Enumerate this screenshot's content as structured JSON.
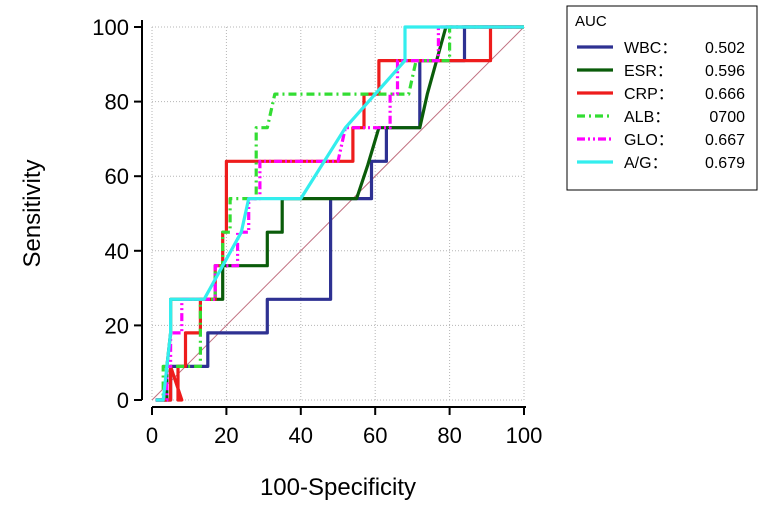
{
  "chart_data": {
    "type": "line",
    "title": "",
    "xlabel": "100-Specificity",
    "ylabel": "Sensitivity",
    "xlim": [
      0,
      100
    ],
    "ylim": [
      0,
      100
    ],
    "x_ticks": [
      "0",
      "20",
      "40",
      "60",
      "80",
      "100"
    ],
    "y_ticks": [
      "0",
      "20",
      "40",
      "60",
      "80",
      "100"
    ],
    "grid": true,
    "legend_placement": "top-right outside",
    "legend_title": "AUC",
    "reference_line": {
      "from": [
        0,
        0
      ],
      "to": [
        100,
        100
      ],
      "color": "#c07080"
    },
    "series": [
      {
        "name": "WBC",
        "auc_label": "0.502",
        "color": "#2e3192",
        "dash": "solid",
        "points": [
          [
            1,
            0
          ],
          [
            5,
            0
          ],
          [
            5,
            9
          ],
          [
            15,
            9
          ],
          [
            15,
            18
          ],
          [
            31,
            18
          ],
          [
            31,
            27
          ],
          [
            48,
            27
          ],
          [
            48,
            54
          ],
          [
            59,
            54
          ],
          [
            59,
            64
          ],
          [
            63,
            64
          ],
          [
            63,
            73
          ],
          [
            72,
            73
          ],
          [
            72,
            91
          ],
          [
            84,
            91
          ],
          [
            84,
            100
          ],
          [
            100,
            100
          ]
        ]
      },
      {
        "name": "ESR",
        "auc_label": "0.596",
        "color": "#0a5c0a",
        "dash": "solid",
        "points": [
          [
            1,
            0
          ],
          [
            4,
            0
          ],
          [
            4,
            9
          ],
          [
            5,
            18
          ],
          [
            5,
            27
          ],
          [
            13,
            27
          ],
          [
            13,
            27
          ],
          [
            19,
            27
          ],
          [
            19,
            36
          ],
          [
            25,
            36
          ],
          [
            25,
            36
          ],
          [
            31,
            36
          ],
          [
            31,
            45
          ],
          [
            35,
            45
          ],
          [
            35,
            54
          ],
          [
            55,
            54
          ],
          [
            58,
            63
          ],
          [
            61,
            73
          ],
          [
            72,
            73
          ],
          [
            74,
            82
          ],
          [
            79,
            100
          ],
          [
            100,
            100
          ]
        ]
      },
      {
        "name": "CRP",
        "auc_label": "0.666",
        "color": "#ee1c1c",
        "dash": "solid",
        "points": [
          [
            1,
            0
          ],
          [
            5,
            0
          ],
          [
            5,
            9
          ],
          [
            8,
            0
          ],
          [
            7,
            0
          ],
          [
            7,
            9
          ],
          [
            9,
            9
          ],
          [
            9,
            18
          ],
          [
            13,
            18
          ],
          [
            13,
            27
          ],
          [
            17,
            27
          ],
          [
            17,
            36
          ],
          [
            19,
            36
          ],
          [
            19,
            45
          ],
          [
            20,
            45
          ],
          [
            20,
            64
          ],
          [
            54,
            64
          ],
          [
            54,
            73
          ],
          [
            57,
            73
          ],
          [
            57,
            82
          ],
          [
            61,
            82
          ],
          [
            61,
            91
          ],
          [
            70,
            91
          ],
          [
            70,
            91
          ],
          [
            76,
            91
          ],
          [
            76,
            91
          ],
          [
            91,
            91
          ],
          [
            91,
            100
          ],
          [
            100,
            100
          ]
        ]
      },
      {
        "name": "ALB",
        "auc_label": "0700",
        "color": "#33dd33",
        "dash": "8,4,2,4",
        "points": [
          [
            1,
            0
          ],
          [
            3,
            0
          ],
          [
            3,
            9
          ],
          [
            13,
            9
          ],
          [
            13,
            27
          ],
          [
            17,
            27
          ],
          [
            17,
            36
          ],
          [
            19,
            36
          ],
          [
            19,
            45
          ],
          [
            21,
            45
          ],
          [
            21,
            54
          ],
          [
            28,
            54
          ],
          [
            28,
            73
          ],
          [
            31,
            73
          ],
          [
            33,
            82
          ],
          [
            69,
            82
          ],
          [
            71,
            91
          ],
          [
            80,
            91
          ],
          [
            80,
            100
          ],
          [
            100,
            100
          ]
        ]
      },
      {
        "name": "GLO",
        "auc_label": "0.667",
        "color": "#ff00ff",
        "dash": "8,3,2,3,2,3",
        "points": [
          [
            1,
            0
          ],
          [
            4,
            0
          ],
          [
            4,
            9
          ],
          [
            5,
            9
          ],
          [
            5,
            18
          ],
          [
            8,
            18
          ],
          [
            8,
            27
          ],
          [
            15,
            27
          ],
          [
            15,
            27
          ],
          [
            17,
            27
          ],
          [
            17,
            36
          ],
          [
            21,
            36
          ],
          [
            21,
            36
          ],
          [
            23,
            36
          ],
          [
            23,
            45
          ],
          [
            26,
            45
          ],
          [
            26,
            54
          ],
          [
            29,
            54
          ],
          [
            29,
            64
          ],
          [
            50,
            64
          ],
          [
            52,
            73
          ],
          [
            64,
            73
          ],
          [
            64,
            82
          ],
          [
            66,
            82
          ],
          [
            66,
            91
          ],
          [
            77,
            91
          ],
          [
            77,
            100
          ],
          [
            100,
            100
          ]
        ]
      },
      {
        "name": "A/G",
        "auc_label": "0.679",
        "color": "#33eeee",
        "dash": "solid",
        "points": [
          [
            1,
            0
          ],
          [
            3,
            0
          ],
          [
            5,
            18
          ],
          [
            5,
            27
          ],
          [
            14,
            27
          ],
          [
            14,
            27
          ],
          [
            24,
            45
          ],
          [
            26,
            54
          ],
          [
            40,
            54
          ],
          [
            52,
            73
          ],
          [
            60,
            82
          ],
          [
            68,
            91
          ],
          [
            68,
            100
          ],
          [
            100,
            100
          ]
        ]
      }
    ]
  }
}
